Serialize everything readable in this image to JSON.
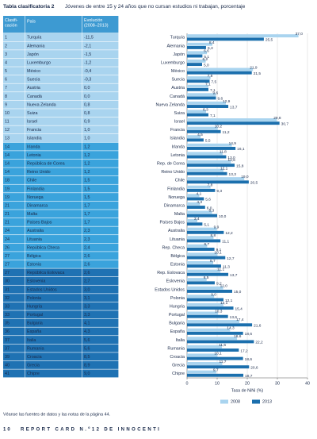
{
  "header": {
    "label": "Tabla clasificatoria 2",
    "title": "Jóvenes de entre 15 y 24 años que no cursan estudios ni trabajan, porcentaje"
  },
  "table": {
    "header": [
      "Clasifi-cación",
      "País",
      "Evolución (2008–2013)"
    ],
    "rows": [
      [
        "1",
        "Turquía",
        "-11,5"
      ],
      [
        "2",
        "Alemania",
        "-2,1"
      ],
      [
        "3",
        "Japón",
        "-1,5"
      ],
      [
        "4",
        "Luxemburgo",
        "-1,2"
      ],
      [
        "5",
        "México",
        "-0,4"
      ],
      [
        "6",
        "Suecia",
        "-0,3"
      ],
      [
        "7",
        "Austria",
        "0,0"
      ],
      [
        "8",
        "Canadá",
        "0,0"
      ],
      [
        "9",
        "Nueva Zelanda",
        "0,8"
      ],
      [
        "10",
        "Suiza",
        "0,8"
      ],
      [
        "11",
        "Israel",
        "0,9"
      ],
      [
        "12",
        "Francia",
        "1,0"
      ],
      [
        "13",
        "Islandia",
        "1,0"
      ],
      [
        "14",
        "Irlanda",
        "1,2"
      ],
      [
        "14",
        "Letonia",
        "1,2"
      ],
      [
        "14",
        "República de Corea",
        "1,2"
      ],
      [
        "14",
        "Reino Unido",
        "1,2"
      ],
      [
        "18",
        "Chile",
        "1,5"
      ],
      [
        "19",
        "Finlandia",
        "1,5"
      ],
      [
        "19",
        "Noruega",
        "1,5"
      ],
      [
        "21",
        "Dinamarca",
        "1,7"
      ],
      [
        "21",
        "Malta",
        "1,7"
      ],
      [
        "21",
        "Países Bajos",
        "1,7"
      ],
      [
        "24",
        "Australia",
        "2,3"
      ],
      [
        "24",
        "Lituania",
        "2,3"
      ],
      [
        "26",
        "República Checa",
        "2,4"
      ],
      [
        "27",
        "Bélgica",
        "2,6"
      ],
      [
        "27",
        "Estonia",
        "2,6"
      ],
      [
        "27",
        "República Eslovaca",
        "2,6"
      ],
      [
        "30",
        "Eslovenia",
        "2,7"
      ],
      [
        "31",
        "Estados Unidos",
        "3,0"
      ],
      [
        "32",
        "Polonia",
        "3,1"
      ],
      [
        "33",
        "Hungría",
        "3,3"
      ],
      [
        "33",
        "Portugal",
        "3,3"
      ],
      [
        "35",
        "Bulgaria",
        "4,1"
      ],
      [
        "36",
        "España",
        "4,3"
      ],
      [
        "37",
        "Italia",
        "5,6"
      ],
      [
        "37",
        "Rumania",
        "5,6"
      ],
      [
        "39",
        "Croacia",
        "8,5"
      ],
      [
        "40",
        "Grecia",
        "8,9"
      ],
      [
        "41",
        "Chipre",
        "9,0"
      ]
    ]
  },
  "chart_data": {
    "type": "bar",
    "categories": [
      "Turquía",
      "Alemania",
      "Japón",
      "Luxemburgo",
      "México",
      "Suecia",
      "Austria",
      "Canadá",
      "Nueva Zelanda",
      "Suiza",
      "Israel",
      "Francia",
      "Islandia",
      "Irlanda",
      "Letonia",
      "Rep. de Corea",
      "Reino Unido",
      "Chile",
      "Finlandia",
      "Noruega",
      "Dinamarca",
      "Malta",
      "Países Bajos",
      "Australia",
      "Lituania",
      "Rep. Checa",
      "Bélgica",
      "Estonia",
      "Rep. Eslovaca",
      "Eslovenia",
      "Estados Unidos",
      "Polonia",
      "Hungría",
      "Portugal",
      "Bulgaria",
      "España",
      "Italia",
      "Rumania",
      "Croacia",
      "Grecia",
      "Chipre"
    ],
    "series": [
      {
        "name": "2008",
        "color": "#a9d4ef",
        "values": [
          37.0,
          8.4,
          6.6,
          6.2,
          21.9,
          7.8,
          7.1,
          9.6,
          12.9,
          6.3,
          29.8,
          10.2,
          4.5,
          14.9,
          11.8,
          14.6,
          12.1,
          19.0,
          7.8,
          4.1,
          4.3,
          8.3,
          3.4,
          9.9,
          8.8,
          6.7,
          10.1,
          8.7,
          11.1,
          6.5,
          12.0,
          9.0,
          12.1,
          10.3,
          17.4,
          14.3,
          16.6,
          11.6,
          10.1,
          11.7,
          9.7
        ],
        "value_labels": [
          "37,0",
          "8,4",
          "6,6",
          "6,2",
          "21,9",
          "7,8",
          "7,1",
          "9,6",
          "12,9",
          "6,3",
          "29,8",
          "10,2",
          "4,5",
          "14,9",
          "11,8",
          "14,6",
          "12,1",
          "19,0",
          "7,8",
          "4,1",
          "4,3",
          "8,3",
          "3,4",
          "9,9",
          "8,8",
          "6,7",
          "10,1",
          "8,7",
          "11,1",
          "6,5",
          "12,0",
          "9,0",
          "12,1",
          "10,3",
          "17,4",
          "14,3",
          "16,6",
          "11,6",
          "10,1",
          "11,7",
          "9,7"
        ]
      },
      {
        "name": "2013",
        "color": "#1b6fad",
        "values": [
          25.5,
          6.3,
          5.1,
          5.0,
          21.5,
          7.5,
          7.1,
          9.6,
          13.7,
          7.1,
          30.7,
          11.2,
          5.5,
          16.1,
          13.0,
          15.8,
          13.3,
          20.5,
          9.3,
          5.6,
          6.0,
          10.0,
          5.1,
          12.2,
          11.1,
          9.1,
          12.7,
          11.3,
          13.7,
          9.2,
          15.0,
          12.1,
          15.4,
          13.6,
          21.6,
          18.6,
          22.2,
          17.2,
          18.6,
          20.6,
          18.7
        ],
        "value_labels": [
          "25,5",
          "6,3",
          "5,1",
          "5,0",
          "21,5",
          "7,5",
          "7,1",
          "9,6",
          "13,7",
          "7,1",
          "30,7",
          "11,2",
          "5,5",
          "16,1",
          "13,0",
          "15,8",
          "13,3",
          "20,5",
          "9,3",
          "5,6",
          "6,0",
          "10,0",
          "5,1",
          "12,2",
          "11,1",
          "9,1",
          "12,7",
          "11,3",
          "13,7",
          "9,2",
          "15,0",
          "12,1",
          "15,4",
          "13,6",
          "21,6",
          "18,6",
          "22,2",
          "17,2",
          "18,6",
          "20,6",
          "18,7"
        ]
      }
    ],
    "xlim": [
      0,
      40
    ],
    "xticks": [
      0,
      10,
      20,
      30,
      40
    ],
    "xlabel": "Tasa de NiNi (%)",
    "grid": true,
    "legend": "bottom"
  },
  "footnote": "Véanse las fuentes de datos y las notas de la página 44.",
  "footer": {
    "page": "10",
    "text": "REPORT CARD N.º12 DE INNOCENTI"
  }
}
